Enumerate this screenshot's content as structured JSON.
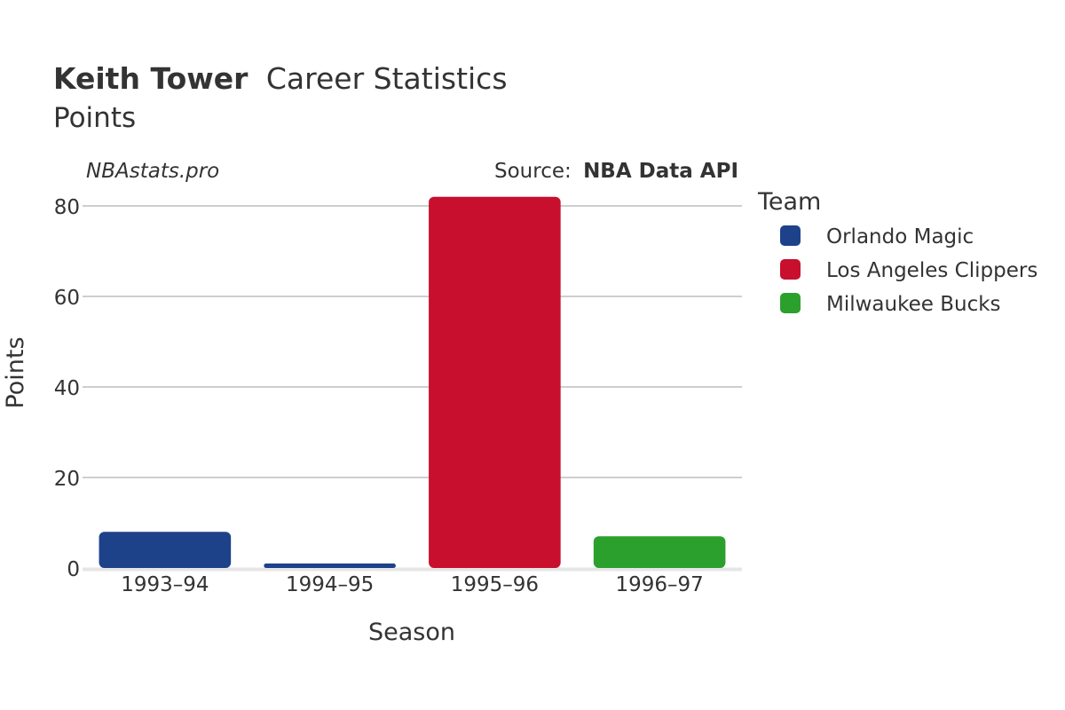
{
  "header": {
    "title_bold": "Keith Tower",
    "title_rest": "Career Statistics",
    "subtitle": "Points"
  },
  "watermark": "NBAstats.pro",
  "source": {
    "label": "Source:",
    "value": "NBA Data API"
  },
  "chart_data": {
    "type": "bar",
    "title": "Keith Tower Career Statistics",
    "subtitle": "Points",
    "xlabel": "Season",
    "ylabel": "Points",
    "categories": [
      "1993–94",
      "1994–95",
      "1995–96",
      "1996–97"
    ],
    "values": [
      8,
      1,
      82,
      7
    ],
    "teams": [
      "Orlando Magic",
      "Orlando Magic",
      "Los Angeles Clippers",
      "Milwaukee Bucks"
    ],
    "ylim": [
      0,
      80
    ],
    "yticks": [
      0,
      20,
      40,
      60,
      80
    ],
    "grid": true,
    "legend": {
      "title": "Team",
      "placement": "right",
      "entries": [
        {
          "name": "Orlando Magic",
          "color": "#1d428a"
        },
        {
          "name": "Los Angeles Clippers",
          "color": "#c8102e"
        },
        {
          "name": "Milwaukee Bucks",
          "color": "#2ca02c"
        }
      ]
    }
  }
}
